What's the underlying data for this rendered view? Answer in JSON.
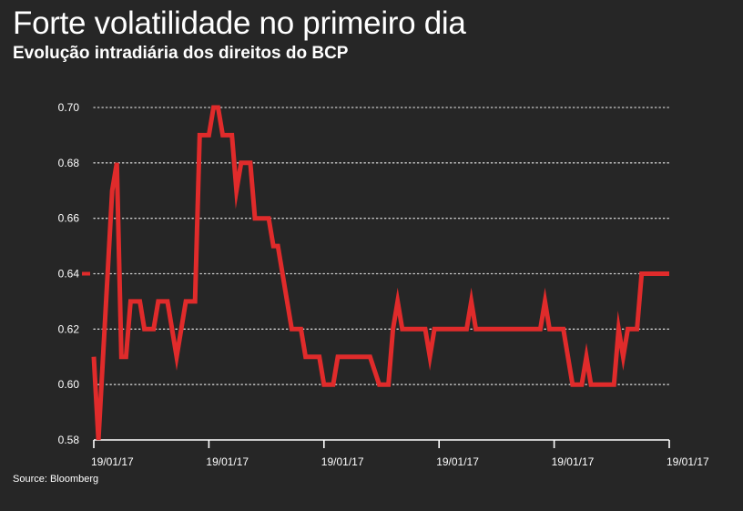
{
  "header": {
    "title": "Forte volatilidade no primeiro dia",
    "subtitle": "Evolução intradiária dos direitos do BCP"
  },
  "footer": {
    "source": "Source: Bloomberg"
  },
  "colors": {
    "background": "#262626",
    "line": "#e02b2b",
    "text": "#ffffff",
    "grid": "#cfcfcf"
  },
  "chart_data": {
    "type": "line",
    "title": "Forte volatilidade no primeiro dia",
    "subtitle": "Evolução intradiária dos direitos do BCP",
    "xlabel": "",
    "ylabel": "",
    "ylim": [
      0.58,
      0.7
    ],
    "yticks": [
      0.58,
      0.6,
      0.62,
      0.64,
      0.66,
      0.68,
      0.7
    ],
    "ytick_labels": [
      "0.58",
      "0.60",
      "0.62",
      "0.64",
      "0.66",
      "0.68",
      "0.70"
    ],
    "xticks": [
      0,
      25,
      50,
      75,
      100,
      125
    ],
    "xtick_labels": [
      "19/01/17",
      "19/01/17",
      "19/01/17",
      "19/01/17",
      "19/01/17",
      "19/01/17"
    ],
    "xlim": [
      0,
      125
    ],
    "grid": "horizontal dotted",
    "legend": "none",
    "series": [
      {
        "name": "",
        "points": [
          [
            0,
            0.61
          ],
          [
            1,
            0.58
          ],
          [
            3,
            0.64
          ],
          [
            4,
            0.67
          ],
          [
            5,
            0.68
          ],
          [
            6,
            0.61
          ],
          [
            7,
            0.61
          ],
          [
            8,
            0.63
          ],
          [
            10,
            0.63
          ],
          [
            11,
            0.62
          ],
          [
            13,
            0.62
          ],
          [
            14,
            0.63
          ],
          [
            16,
            0.63
          ],
          [
            18,
            0.61
          ],
          [
            20,
            0.63
          ],
          [
            22,
            0.63
          ],
          [
            23,
            0.69
          ],
          [
            25,
            0.69
          ],
          [
            26,
            0.7
          ],
          [
            27,
            0.7
          ],
          [
            28,
            0.69
          ],
          [
            30,
            0.69
          ],
          [
            31,
            0.67
          ],
          [
            32,
            0.68
          ],
          [
            34,
            0.68
          ],
          [
            35,
            0.66
          ],
          [
            38,
            0.66
          ],
          [
            39,
            0.65
          ],
          [
            40,
            0.65
          ],
          [
            43,
            0.62
          ],
          [
            45,
            0.62
          ],
          [
            46,
            0.61
          ],
          [
            49,
            0.61
          ],
          [
            50,
            0.6
          ],
          [
            52,
            0.6
          ],
          [
            53,
            0.61
          ],
          [
            60,
            0.61
          ],
          [
            62,
            0.6
          ],
          [
            64,
            0.6
          ],
          [
            65,
            0.62
          ],
          [
            66,
            0.63
          ],
          [
            67,
            0.62
          ],
          [
            72,
            0.62
          ],
          [
            73,
            0.61
          ],
          [
            74,
            0.62
          ],
          [
            81,
            0.62
          ],
          [
            82,
            0.63
          ],
          [
            83,
            0.62
          ],
          [
            97,
            0.62
          ],
          [
            98,
            0.63
          ],
          [
            99,
            0.62
          ],
          [
            102,
            0.62
          ],
          [
            104,
            0.6
          ],
          [
            106,
            0.6
          ],
          [
            107,
            0.61
          ],
          [
            108,
            0.6
          ],
          [
            113,
            0.6
          ],
          [
            114,
            0.62
          ],
          [
            115,
            0.61
          ],
          [
            116,
            0.62
          ],
          [
            118,
            0.62
          ],
          [
            119,
            0.64
          ],
          [
            125,
            0.64
          ]
        ]
      }
    ]
  }
}
